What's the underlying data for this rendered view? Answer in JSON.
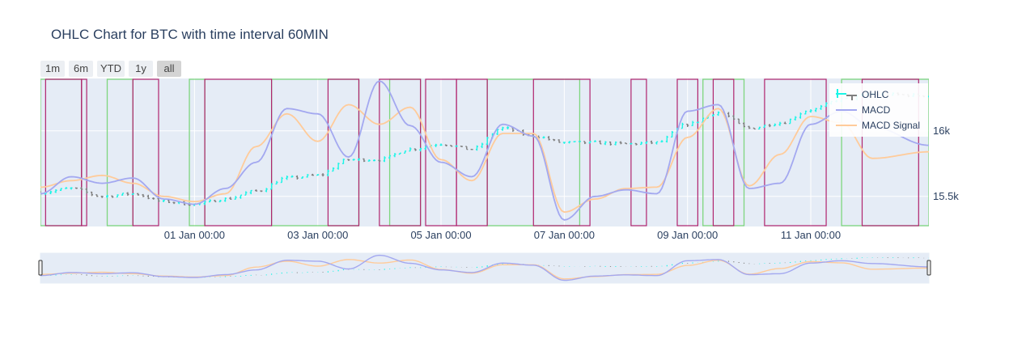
{
  "title": "OHLC Chart for BTC with time interval 60MIN",
  "range_selector": {
    "buttons": [
      {
        "label": "1m",
        "active": false
      },
      {
        "label": "6m",
        "active": false
      },
      {
        "label": "YTD",
        "active": false
      },
      {
        "label": "1y",
        "active": false
      },
      {
        "label": "all",
        "active": true
      }
    ]
  },
  "colors": {
    "increasing": "#19f5e6",
    "decreasing": "#7f7f7f",
    "macd": "#a3a8f0",
    "signal": "#ffcb9a",
    "buy_region": "#7ed67e",
    "sell_region": "#b0246e",
    "plot_bg": "#e5ecf6"
  },
  "chart_data": {
    "type": "ohlc",
    "title": "OHLC Chart for BTC with time interval 60MIN",
    "x_range": [
      "2022-12-29 12:00",
      "2023-01-12 22:00"
    ],
    "x_ticks": [
      "01 Jan 00:00",
      "03 Jan 00:00",
      "05 Jan 00:00",
      "07 Jan 00:00",
      "09 Jan 00:00",
      "11 Jan 00:00"
    ],
    "y_ticks": [
      "15.5k",
      "16k"
    ],
    "y_range": [
      15270,
      16400
    ],
    "legend": [
      "OHLC",
      "MACD",
      "MACD Signal"
    ],
    "legend_position": "top-right",
    "price_anchors": [
      [
        "2022-12-29 12:00",
        15530
      ],
      [
        "2022-12-30 00:00",
        15560
      ],
      [
        "2022-12-30 12:00",
        15500
      ],
      [
        "2022-12-31 00:00",
        15520
      ],
      [
        "2022-12-31 12:00",
        15460
      ],
      [
        "2023-01-01 00:00",
        15440
      ],
      [
        "2023-01-01 12:00",
        15480
      ],
      [
        "2023-01-02 00:00",
        15540
      ],
      [
        "2023-01-02 12:00",
        15640
      ],
      [
        "2023-01-03 00:00",
        15660
      ],
      [
        "2023-01-03 12:00",
        15780
      ],
      [
        "2023-01-04 00:00",
        15780
      ],
      [
        "2023-01-04 12:00",
        15860
      ],
      [
        "2023-01-05 00:00",
        15900
      ],
      [
        "2023-01-05 12:00",
        15860
      ],
      [
        "2023-01-06 00:00",
        16020
      ],
      [
        "2023-01-06 12:00",
        15960
      ],
      [
        "2023-01-07 00:00",
        15910
      ],
      [
        "2023-01-07 12:00",
        15910
      ],
      [
        "2023-01-08 00:00",
        15900
      ],
      [
        "2023-01-08 12:00",
        15910
      ],
      [
        "2023-01-09 00:00",
        16050
      ],
      [
        "2023-01-09 12:00",
        16140
      ],
      [
        "2023-01-10 00:00",
        16020
      ],
      [
        "2023-01-10 12:00",
        16060
      ],
      [
        "2023-01-11 00:00",
        16160
      ],
      [
        "2023-01-11 12:00",
        16240
      ],
      [
        "2023-01-12 00:00",
        16280
      ],
      [
        "2023-01-12 22:00",
        16270
      ]
    ],
    "macd_anchors": [
      [
        "2022-12-29 12:00",
        15520
      ],
      [
        "2022-12-30 00:00",
        15650
      ],
      [
        "2022-12-30 12:00",
        15600
      ],
      [
        "2022-12-31 00:00",
        15640
      ],
      [
        "2022-12-31 12:00",
        15480
      ],
      [
        "2023-01-01 00:00",
        15440
      ],
      [
        "2023-01-01 12:00",
        15560
      ],
      [
        "2023-01-02 00:00",
        15760
      ],
      [
        "2023-01-02 12:00",
        16170
      ],
      [
        "2023-01-03 00:00",
        16130
      ],
      [
        "2023-01-03 12:00",
        15800
      ],
      [
        "2023-01-04 00:00",
        16380
      ],
      [
        "2023-01-04 12:00",
        16040
      ],
      [
        "2023-01-05 00:00",
        15760
      ],
      [
        "2023-01-05 12:00",
        15650
      ],
      [
        "2023-01-06 00:00",
        16050
      ],
      [
        "2023-01-06 12:00",
        15960
      ],
      [
        "2023-01-07 00:00",
        15320
      ],
      [
        "2023-01-07 12:00",
        15500
      ],
      [
        "2023-01-08 00:00",
        15550
      ],
      [
        "2023-01-08 12:00",
        15520
      ],
      [
        "2023-01-09 00:00",
        16150
      ],
      [
        "2023-01-09 12:00",
        16200
      ],
      [
        "2023-01-10 00:00",
        15560
      ],
      [
        "2023-01-10 12:00",
        15600
      ],
      [
        "2023-01-11 00:00",
        16050
      ],
      [
        "2023-01-11 12:00",
        16150
      ],
      [
        "2023-01-12 00:00",
        16030
      ],
      [
        "2023-01-12 22:00",
        15890
      ]
    ],
    "signal_anchors": [
      [
        "2022-12-29 12:00",
        15570
      ],
      [
        "2022-12-30 00:00",
        15620
      ],
      [
        "2022-12-30 12:00",
        15660
      ],
      [
        "2022-12-31 00:00",
        15600
      ],
      [
        "2022-12-31 12:00",
        15500
      ],
      [
        "2023-01-01 00:00",
        15460
      ],
      [
        "2023-01-01 12:00",
        15520
      ],
      [
        "2023-01-02 00:00",
        15880
      ],
      [
        "2023-01-02 12:00",
        16130
      ],
      [
        "2023-01-03 00:00",
        15920
      ],
      [
        "2023-01-03 12:00",
        16200
      ],
      [
        "2023-01-04 00:00",
        16050
      ],
      [
        "2023-01-04 12:00",
        16180
      ],
      [
        "2023-01-05 00:00",
        15780
      ],
      [
        "2023-01-05 12:00",
        15620
      ],
      [
        "2023-01-06 00:00",
        15980
      ],
      [
        "2023-01-06 12:00",
        15980
      ],
      [
        "2023-01-07 00:00",
        15380
      ],
      [
        "2023-01-07 12:00",
        15480
      ],
      [
        "2023-01-08 00:00",
        15560
      ],
      [
        "2023-01-08 12:00",
        15570
      ],
      [
        "2023-01-09 00:00",
        15950
      ],
      [
        "2023-01-09 12:00",
        16170
      ],
      [
        "2023-01-10 00:00",
        15580
      ],
      [
        "2023-01-10 12:00",
        15820
      ],
      [
        "2023-01-11 00:00",
        16110
      ],
      [
        "2023-01-11 12:00",
        16060
      ],
      [
        "2023-01-12 00:00",
        15790
      ],
      [
        "2023-01-12 22:00",
        15840
      ]
    ],
    "buy_regions": [
      [
        "2022-12-29 12:00",
        "2022-12-30 04:00"
      ],
      [
        "2022-12-30 14:00",
        "2022-12-31 00:00"
      ],
      [
        "2022-12-31 22:00",
        "2023-01-01 04:00"
      ],
      [
        "2023-01-02 06:00",
        "2023-01-03 16:00"
      ],
      [
        "2023-01-04 04:00",
        "2023-01-04 16:00"
      ],
      [
        "2023-01-05 18:00",
        "2023-01-07 06:00"
      ],
      [
        "2023-01-09 06:00",
        "2023-01-09 22:00"
      ],
      [
        "2023-01-11 12:00",
        "2023-01-12 22:00"
      ]
    ],
    "sell_regions": [
      [
        "2022-12-29 14:00",
        "2022-12-30 04:00"
      ],
      [
        "2022-12-30 04:00",
        "2022-12-30 06:00"
      ],
      [
        "2022-12-31 00:00",
        "2022-12-31 10:00"
      ],
      [
        "2023-01-01 04:00",
        "2023-01-02 06:00"
      ],
      [
        "2023-01-03 04:00",
        "2023-01-03 16:00"
      ],
      [
        "2023-01-04 00:00",
        "2023-01-04 16:00"
      ],
      [
        "2023-01-04 18:00",
        "2023-01-05 06:00"
      ],
      [
        "2023-01-05 06:00",
        "2023-01-05 18:00"
      ],
      [
        "2023-01-06 12:00",
        "2023-01-07 10:00"
      ],
      [
        "2023-01-08 02:00",
        "2023-01-08 08:00"
      ],
      [
        "2023-01-08 20:00",
        "2023-01-09 04:00"
      ],
      [
        "2023-01-09 10:00",
        "2023-01-09 18:00"
      ],
      [
        "2023-01-10 06:00",
        "2023-01-11 06:00"
      ],
      [
        "2023-01-11 20:00",
        "2023-01-12 18:00"
      ]
    ]
  }
}
